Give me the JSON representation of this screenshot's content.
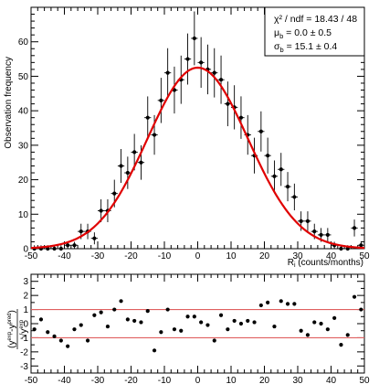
{
  "chart_data": [
    {
      "type": "scatter",
      "title": "",
      "xlabel": "R_i (counts/months)",
      "ylabel": "Observation frequency",
      "xlim": [
        -50,
        50
      ],
      "ylim": [
        0,
        70
      ],
      "x_ticks": [
        -50,
        -40,
        -30,
        -20,
        -10,
        0,
        10,
        20,
        30,
        40,
        50
      ],
      "y_ticks": [
        0,
        10,
        20,
        30,
        40,
        50,
        60
      ],
      "stats_box": {
        "line1": "χ² / ndf = 18.43 / 48",
        "line2_sym": "μ",
        "line2_sub": "b",
        "line2_val": " = 0.0 ± 0.5",
        "line3_sym": "σ",
        "line3_sub": "b",
        "line3_val": " = 15.1 ± 0.4"
      },
      "fit": {
        "type": "gaussian",
        "amplitude": 52.5,
        "mean": 0.0,
        "sigma": 15.1,
        "color": "#e00000"
      },
      "series": [
        {
          "x": [
            -49,
            -47,
            -45,
            -43,
            -41,
            -39,
            -37,
            -35,
            -33,
            -31,
            -29,
            -27,
            -25,
            -23,
            -21,
            -19,
            -17,
            -15,
            -13,
            -11,
            -9,
            -7,
            -5,
            -3,
            -1,
            1,
            3,
            5,
            7,
            9,
            11,
            13,
            15,
            17,
            19,
            21,
            23,
            25,
            27,
            29,
            31,
            33,
            35,
            37,
            39,
            41,
            43,
            45,
            47,
            49
          ],
          "y": [
            0,
            0,
            0,
            0,
            0,
            1,
            1,
            5,
            5,
            3,
            11,
            11,
            16,
            24,
            22,
            28,
            25,
            38,
            33,
            43,
            51,
            46,
            49,
            55,
            61,
            54,
            52,
            51,
            49,
            42,
            41,
            38,
            33,
            27,
            34,
            27,
            21,
            23,
            18,
            15,
            8,
            8,
            5,
            4,
            4,
            1,
            0,
            0,
            6,
            1
          ]
        }
      ]
    },
    {
      "type": "scatter",
      "title": "",
      "xlabel": "",
      "ylabel": "(y^exp - y^pred) / sqrt(y^exp)",
      "ylabel_parts": {
        "num_a": "y",
        "num_a_sup": "exp",
        "num_b": "y",
        "num_b_sup": "pred",
        "den": "y",
        "den_sup": "exp",
        "minus": "-"
      },
      "xlim": [
        -50,
        50
      ],
      "ylim": [
        -3.5,
        3.5
      ],
      "x_ticks": [
        -50,
        -40,
        -30,
        -20,
        -10,
        0,
        10,
        20,
        30,
        40,
        50
      ],
      "y_ticks": [
        -3,
        -2,
        -1,
        0,
        1,
        2,
        3
      ],
      "reference_lines": [
        1,
        -1
      ],
      "series": [
        {
          "x": [
            -49,
            -47,
            -45,
            -43,
            -41,
            -39,
            -37,
            -35,
            -33,
            -31,
            -29,
            -27,
            -25,
            -23,
            -21,
            -19,
            -17,
            -15,
            -13,
            -11,
            -9,
            -7,
            -5,
            -3,
            -1,
            1,
            3,
            5,
            7,
            9,
            11,
            13,
            15,
            17,
            19,
            21,
            23,
            25,
            27,
            29,
            31,
            33,
            35,
            37,
            39,
            41,
            43,
            45,
            47,
            49
          ],
          "y": [
            -0.4,
            0.3,
            -0.6,
            -0.9,
            -1.2,
            -1.6,
            -0.4,
            -0.1,
            -1.2,
            0.6,
            0.8,
            -0.2,
            1.0,
            1.6,
            0.3,
            0.2,
            0.1,
            0.9,
            -1.9,
            -0.6,
            1.0,
            -0.4,
            -0.5,
            0.5,
            0.5,
            0.1,
            -0.1,
            -1.2,
            0.6,
            -0.4,
            0.2,
            0.0,
            0.2,
            0.1,
            1.3,
            1.5,
            -0.2,
            1.6,
            1.4,
            1.4,
            -0.5,
            -0.8,
            0.1,
            0.0,
            -0.4,
            0.4,
            -1.5,
            -0.8,
            1.9,
            1.0
          ]
        }
      ]
    }
  ]
}
